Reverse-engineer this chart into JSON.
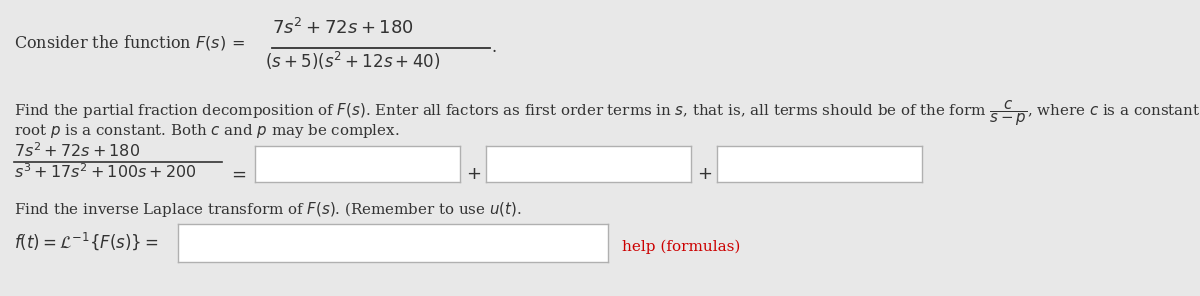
{
  "bg_color": "#e8e8e8",
  "text_color": "#333333",
  "red_color": "#cc0000",
  "box_facecolor": "#ffffff",
  "box_edgecolor": "#b0b0b0",
  "fontsize_main": 11.5,
  "fontsize_math": 12.0,
  "fontsize_small": 11.0
}
